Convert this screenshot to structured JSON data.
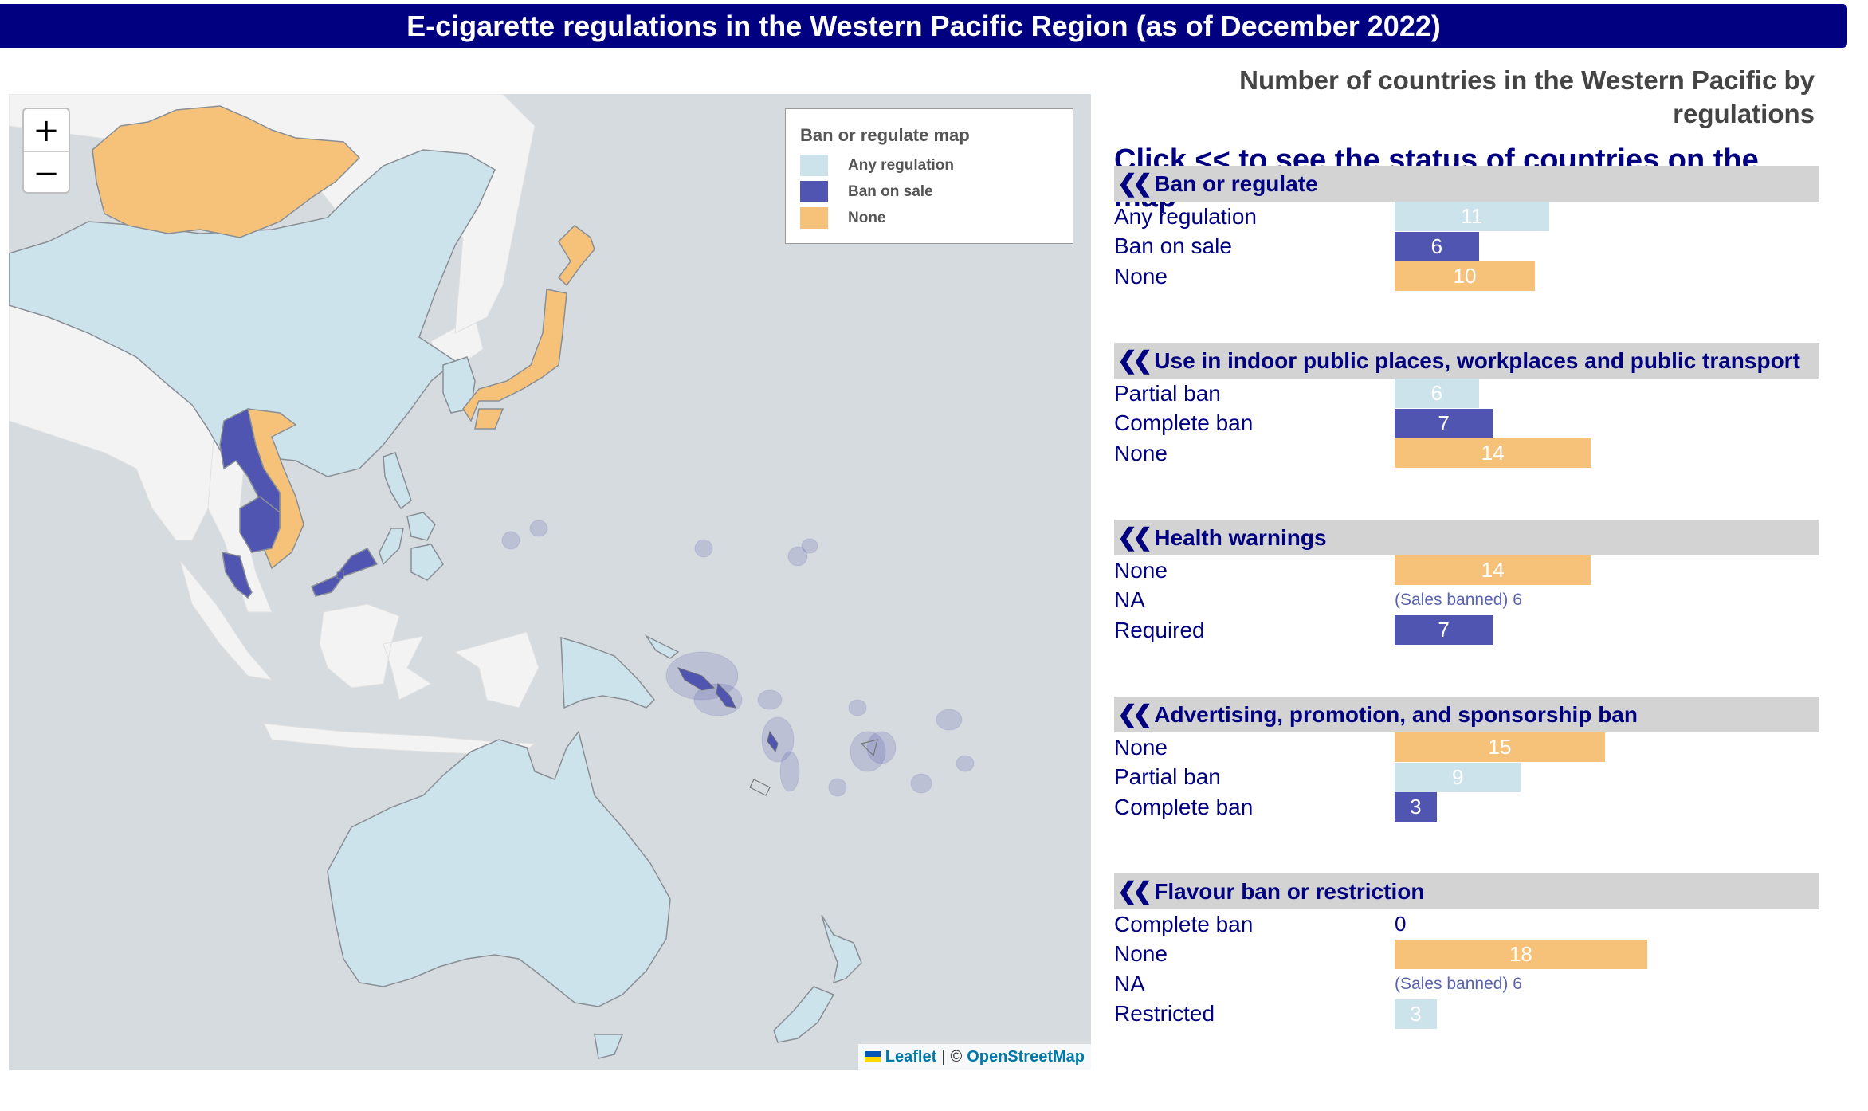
{
  "title": "E-cigarette regulations in the Western Pacific Region (as of December 2022)",
  "colors": {
    "any_regulation": "#cde3ec",
    "ban_on_sale": "#4f55b0",
    "none": "#f6c27a",
    "title_bg": "#000080"
  },
  "map": {
    "zoom_in": "+",
    "zoom_out": "−",
    "legend": {
      "title": "Ban or regulate map",
      "items": [
        {
          "label": "Any regulation",
          "color": "#cde3ec"
        },
        {
          "label": "Ban on sale",
          "color": "#4f55b0"
        },
        {
          "label": "None",
          "color": "#f6c27a"
        }
      ]
    },
    "attribution": {
      "leaflet": "Leaflet",
      "sep": "|",
      "copy": "©",
      "osm": "OpenStreetMap"
    }
  },
  "side": {
    "subtitle": "Number of countries in the Western Pacific by regulations",
    "instruction": "Click << to see the status of countries on the map"
  },
  "sections": [
    {
      "title": "Ban or regulate",
      "rows": [
        {
          "label": "Any regulation",
          "value": 11,
          "color": "#cde3ec"
        },
        {
          "label": "Ban on sale",
          "value": 6,
          "color": "#4f55b0"
        },
        {
          "label": "None",
          "value": 10,
          "color": "#f6c27a"
        }
      ]
    },
    {
      "title": "Use in indoor public places, workplaces and public transport",
      "rows": [
        {
          "label": "Partial ban",
          "value": 6,
          "color": "#cde3ec"
        },
        {
          "label": "Complete ban",
          "value": 7,
          "color": "#4f55b0"
        },
        {
          "label": "None",
          "value": 14,
          "color": "#f6c27a"
        }
      ]
    },
    {
      "title": " Health warnings",
      "rows": [
        {
          "label": "None",
          "value": 14,
          "color": "#f6c27a"
        },
        {
          "label": "NA",
          "value": 6,
          "note": "(Sales banned) 6"
        },
        {
          "label": "Required",
          "value": 7,
          "color": "#4f55b0"
        }
      ]
    },
    {
      "title": "Advertising, promotion, and sponsorship ban",
      "rows": [
        {
          "label": "None",
          "value": 15,
          "color": "#f6c27a"
        },
        {
          "label": "Partial ban",
          "value": 9,
          "color": "#cde3ec"
        },
        {
          "label": "Complete ban",
          "value": 3,
          "color": "#4f55b0"
        }
      ]
    },
    {
      "title": "Flavour ban or restriction",
      "rows": [
        {
          "label": "Complete ban",
          "value": 0,
          "color": "#cde3ec"
        },
        {
          "label": "None",
          "value": 18,
          "color": "#f6c27a"
        },
        {
          "label": "NA",
          "value": 6,
          "note": "(Sales banned) 6"
        },
        {
          "label": "Restricted",
          "value": 3,
          "color": "#cde3ec"
        }
      ]
    }
  ]
}
